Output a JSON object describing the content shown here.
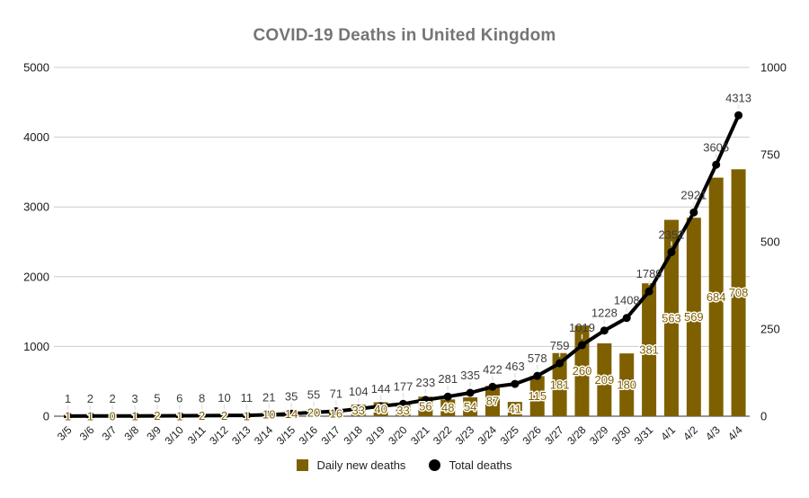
{
  "chart_data": {
    "type": "combo",
    "title": "COVID-19 Deaths in United Kingdom",
    "categories": [
      "3/5",
      "3/6",
      "3/7",
      "3/8",
      "3/9",
      "3/10",
      "3/11",
      "3/12",
      "3/13",
      "3/14",
      "3/15",
      "3/16",
      "3/17",
      "3/18",
      "3/19",
      "3/20",
      "3/21",
      "3/22",
      "3/23",
      "3/24",
      "3/25",
      "3/26",
      "3/27",
      "3/28",
      "3/29",
      "3/30",
      "3/31",
      "4/1",
      "4/2",
      "4/3",
      "4/4"
    ],
    "series": [
      {
        "name": "Daily new deaths",
        "type": "bar",
        "axis": "right",
        "color": "#7F6000",
        "values": [
          1,
          1,
          0,
          1,
          2,
          1,
          2,
          2,
          1,
          10,
          14,
          20,
          16,
          33,
          40,
          33,
          56,
          48,
          54,
          87,
          41,
          115,
          181,
          260,
          209,
          180,
          381,
          563,
          569,
          684,
          708
        ]
      },
      {
        "name": "Total deaths",
        "type": "line",
        "axis": "left",
        "color": "#000000",
        "values": [
          1,
          2,
          2,
          3,
          5,
          6,
          8,
          10,
          11,
          21,
          35,
          55,
          71,
          104,
          144,
          177,
          233,
          281,
          335,
          422,
          463,
          578,
          759,
          1019,
          1228,
          1408,
          1789,
          2352,
          2921,
          3605,
          4313
        ]
      }
    ],
    "left_axis": {
      "min": 0,
      "max": 5000,
      "ticks": [
        0,
        1000,
        2000,
        3000,
        4000,
        5000
      ]
    },
    "right_axis": {
      "min": 0,
      "max": 1000,
      "ticks": [
        0,
        250,
        500,
        750,
        1000
      ]
    },
    "grid": true,
    "legend_position": "bottom",
    "colors": {
      "title": "#757575",
      "grid": "#cccccc",
      "axis_line": "#333333",
      "axis_text": "#1a1a1a",
      "total_label": "#3c3c3c",
      "leader_line": "#e4e4e4",
      "label_halo": "#ffffff"
    }
  }
}
